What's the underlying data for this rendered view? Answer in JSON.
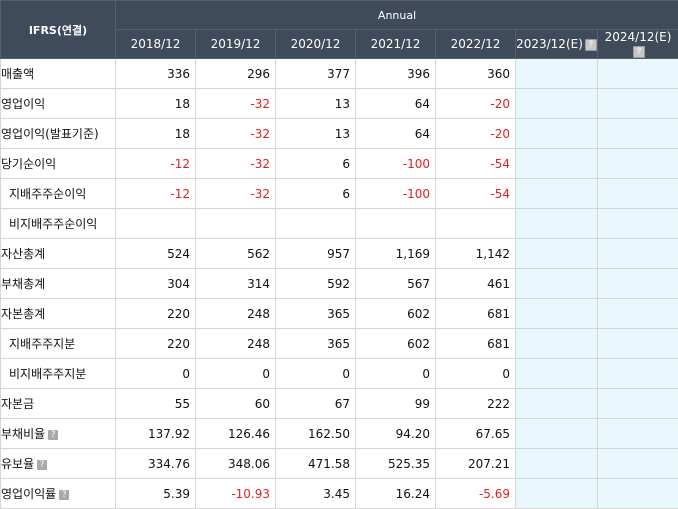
{
  "header": {
    "corner_label": "IFRS(연결)",
    "group_label": "Annual",
    "periods": [
      "2018/12",
      "2019/12",
      "2020/12",
      "2021/12",
      "2022/12",
      "2023/12(E)",
      "2024/12(E)"
    ]
  },
  "colors": {
    "header_bg": "#3f4a5a",
    "negative": "#e02020",
    "estimate_bg": "#e9f6fb"
  },
  "icons": {
    "help": "question-icon"
  },
  "rows": [
    {
      "label": "매출액",
      "sub": false,
      "help": false,
      "values": [
        "336",
        "296",
        "377",
        "396",
        "360",
        "",
        ""
      ]
    },
    {
      "label": "영업이익",
      "sub": false,
      "help": false,
      "values": [
        "18",
        "-32",
        "13",
        "64",
        "-20",
        "",
        ""
      ]
    },
    {
      "label": "영업이익(발표기준)",
      "sub": false,
      "help": false,
      "values": [
        "18",
        "-32",
        "13",
        "64",
        "-20",
        "",
        ""
      ]
    },
    {
      "label": "당기순이익",
      "sub": false,
      "help": false,
      "values": [
        "-12",
        "-32",
        "6",
        "-100",
        "-54",
        "",
        ""
      ]
    },
    {
      "label": "지배주주순이익",
      "sub": true,
      "help": false,
      "values": [
        "-12",
        "-32",
        "6",
        "-100",
        "-54",
        "",
        ""
      ]
    },
    {
      "label": "비지배주주순이익",
      "sub": true,
      "help": false,
      "values": [
        "",
        "",
        "",
        "",
        "",
        "",
        ""
      ]
    },
    {
      "label": "자산총계",
      "sub": false,
      "help": false,
      "values": [
        "524",
        "562",
        "957",
        "1,169",
        "1,142",
        "",
        ""
      ]
    },
    {
      "label": "부채총계",
      "sub": false,
      "help": false,
      "values": [
        "304",
        "314",
        "592",
        "567",
        "461",
        "",
        ""
      ]
    },
    {
      "label": "자본총계",
      "sub": false,
      "help": false,
      "values": [
        "220",
        "248",
        "365",
        "602",
        "681",
        "",
        ""
      ]
    },
    {
      "label": "지배주주지분",
      "sub": true,
      "help": false,
      "values": [
        "220",
        "248",
        "365",
        "602",
        "681",
        "",
        ""
      ]
    },
    {
      "label": "비지배주주지분",
      "sub": true,
      "help": false,
      "values": [
        "0",
        "0",
        "0",
        "0",
        "0",
        "",
        ""
      ]
    },
    {
      "label": "자본금",
      "sub": false,
      "help": false,
      "values": [
        "55",
        "60",
        "67",
        "99",
        "222",
        "",
        ""
      ]
    },
    {
      "label": "부채비율",
      "sub": false,
      "help": true,
      "values": [
        "137.92",
        "126.46",
        "162.50",
        "94.20",
        "67.65",
        "",
        ""
      ]
    },
    {
      "label": "유보율",
      "sub": false,
      "help": true,
      "values": [
        "334.76",
        "348.06",
        "471.58",
        "525.35",
        "207.21",
        "",
        ""
      ]
    },
    {
      "label": "영업이익률",
      "sub": false,
      "help": true,
      "values": [
        "5.39",
        "-10.93",
        "3.45",
        "16.24",
        "-5.69",
        "",
        ""
      ]
    }
  ]
}
